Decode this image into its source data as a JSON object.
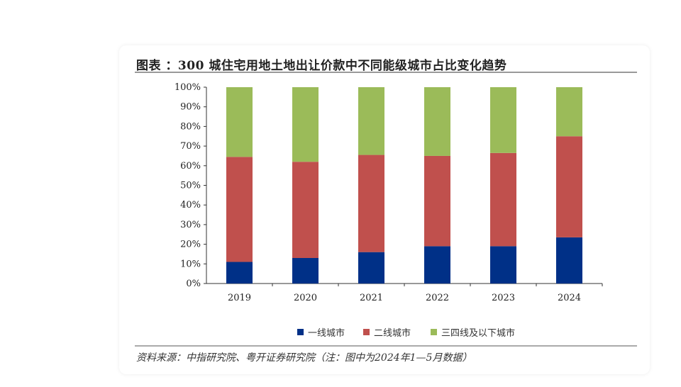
{
  "title": "图表 ：300 城住宅用地土地出让价款中不同能级城市占比变化趋势",
  "footnote": "资料来源：中指研究院、粤开证券研究院（注：图中为2024年1—5月数据）",
  "chart_data": {
    "type": "bar",
    "stacked": true,
    "title": "图表 ：300 城住宅用地土地出让价款中不同能级城市占比变化趋势",
    "categories": [
      "2019",
      "2020",
      "2021",
      "2022",
      "2023",
      "2024"
    ],
    "series": [
      {
        "name": "一线城市",
        "color": "#003087",
        "values": [
          11,
          13,
          16,
          19,
          19,
          23.5
        ]
      },
      {
        "name": "二线城市",
        "color": "#c0504d",
        "values": [
          53.5,
          49,
          49.5,
          46,
          47.5,
          51.5
        ]
      },
      {
        "name": "三四线及以下城市",
        "color": "#9bbb59",
        "values": [
          35.5,
          38,
          34.5,
          35,
          33.5,
          25
        ]
      }
    ],
    "ylim": [
      0,
      100
    ],
    "yticks": [
      "0%",
      "10%",
      "20%",
      "30%",
      "40%",
      "50%",
      "60%",
      "70%",
      "80%",
      "90%",
      "100%"
    ],
    "grid": false,
    "legend_position": "bottom"
  }
}
